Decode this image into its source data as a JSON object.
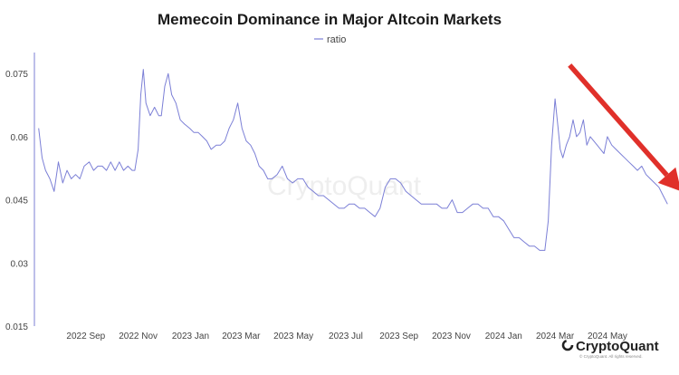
{
  "chart_data": {
    "type": "line",
    "title": "Memecoin Dominance in Major Altcoin Markets",
    "xlabel": "",
    "ylabel": "",
    "legend": {
      "position": "top-center",
      "entries": [
        "ratio"
      ]
    },
    "grid": false,
    "xlim": [
      "2022-07-03",
      "2024-07-15"
    ],
    "ylim": [
      0.015,
      0.08
    ],
    "xticks": [
      {
        "date": "2022-09-01",
        "label": "2022 Sep"
      },
      {
        "date": "2022-11-01",
        "label": "2022 Nov"
      },
      {
        "date": "2023-01-01",
        "label": "2023 Jan"
      },
      {
        "date": "2023-03-01",
        "label": "2023 Mar"
      },
      {
        "date": "2023-05-01",
        "label": "2023 May"
      },
      {
        "date": "2023-07-01",
        "label": "2023 Jul"
      },
      {
        "date": "2023-09-01",
        "label": "2023 Sep"
      },
      {
        "date": "2023-11-01",
        "label": "2023 Nov"
      },
      {
        "date": "2024-01-01",
        "label": "2024 Jan"
      },
      {
        "date": "2024-03-01",
        "label": "2024 Mar"
      },
      {
        "date": "2024-05-01",
        "label": "2024 May"
      }
    ],
    "yticks": [
      {
        "value": 0.015,
        "label": "0.015"
      },
      {
        "value": 0.03,
        "label": "0.03"
      },
      {
        "value": 0.045,
        "label": "0.045"
      },
      {
        "value": 0.06,
        "label": "0.06"
      },
      {
        "value": 0.075,
        "label": "0.075"
      }
    ],
    "series": [
      {
        "name": "ratio",
        "color": "#7b7fd6",
        "x": [
          "2022-07-08",
          "2022-07-12",
          "2022-07-16",
          "2022-07-21",
          "2022-07-26",
          "2022-07-31",
          "2022-08-05",
          "2022-08-10",
          "2022-08-15",
          "2022-08-20",
          "2022-08-25",
          "2022-08-30",
          "2022-09-05",
          "2022-09-10",
          "2022-09-15",
          "2022-09-20",
          "2022-09-25",
          "2022-09-30",
          "2022-10-05",
          "2022-10-10",
          "2022-10-15",
          "2022-10-20",
          "2022-10-25",
          "2022-10-28",
          "2022-11-01",
          "2022-11-04",
          "2022-11-07",
          "2022-11-10",
          "2022-11-15",
          "2022-11-20",
          "2022-11-25",
          "2022-11-28",
          "2022-12-02",
          "2022-12-06",
          "2022-12-10",
          "2022-12-15",
          "2022-12-20",
          "2022-12-25",
          "2022-12-31",
          "2023-01-05",
          "2023-01-10",
          "2023-01-15",
          "2023-01-20",
          "2023-01-25",
          "2023-01-31",
          "2023-02-05",
          "2023-02-10",
          "2023-02-15",
          "2023-02-20",
          "2023-02-25",
          "2023-03-02",
          "2023-03-07",
          "2023-03-12",
          "2023-03-17",
          "2023-03-22",
          "2023-03-27",
          "2023-04-01",
          "2023-04-06",
          "2023-04-12",
          "2023-04-18",
          "2023-04-24",
          "2023-04-30",
          "2023-05-06",
          "2023-05-12",
          "2023-05-18",
          "2023-05-24",
          "2023-05-30",
          "2023-06-05",
          "2023-06-11",
          "2023-06-17",
          "2023-06-23",
          "2023-06-29",
          "2023-07-05",
          "2023-07-11",
          "2023-07-17",
          "2023-07-23",
          "2023-07-29",
          "2023-08-04",
          "2023-08-10",
          "2023-08-16",
          "2023-08-22",
          "2023-08-28",
          "2023-09-03",
          "2023-09-09",
          "2023-09-15",
          "2023-09-21",
          "2023-09-27",
          "2023-10-03",
          "2023-10-09",
          "2023-10-15",
          "2023-10-21",
          "2023-10-27",
          "2023-11-02",
          "2023-11-08",
          "2023-11-14",
          "2023-11-20",
          "2023-11-26",
          "2023-12-02",
          "2023-12-08",
          "2023-12-14",
          "2023-12-20",
          "2023-12-26",
          "2024-01-01",
          "2024-01-07",
          "2024-01-13",
          "2024-01-19",
          "2024-01-25",
          "2024-01-31",
          "2024-02-06",
          "2024-02-12",
          "2024-02-18",
          "2024-02-22",
          "2024-02-26",
          "2024-03-01",
          "2024-03-04",
          "2024-03-07",
          "2024-03-10",
          "2024-03-14",
          "2024-03-18",
          "2024-03-22",
          "2024-03-26",
          "2024-03-30",
          "2024-04-03",
          "2024-04-07",
          "2024-04-11",
          "2024-04-15",
          "2024-04-19",
          "2024-04-23",
          "2024-04-27",
          "2024-05-01",
          "2024-05-06",
          "2024-05-11",
          "2024-05-16",
          "2024-05-21",
          "2024-05-26",
          "2024-05-31",
          "2024-06-05",
          "2024-06-10",
          "2024-06-15",
          "2024-06-20",
          "2024-06-25",
          "2024-06-30",
          "2024-07-05",
          "2024-07-10"
        ],
        "values": [
          0.062,
          0.055,
          0.052,
          0.05,
          0.047,
          0.054,
          0.049,
          0.052,
          0.05,
          0.051,
          0.05,
          0.053,
          0.054,
          0.052,
          0.053,
          0.053,
          0.052,
          0.054,
          0.052,
          0.054,
          0.052,
          0.053,
          0.052,
          0.052,
          0.057,
          0.07,
          0.076,
          0.068,
          0.065,
          0.067,
          0.065,
          0.065,
          0.072,
          0.075,
          0.07,
          0.068,
          0.064,
          0.063,
          0.062,
          0.061,
          0.061,
          0.06,
          0.059,
          0.057,
          0.058,
          0.058,
          0.059,
          0.062,
          0.064,
          0.068,
          0.062,
          0.059,
          0.058,
          0.056,
          0.053,
          0.052,
          0.05,
          0.05,
          0.051,
          0.053,
          0.05,
          0.049,
          0.05,
          0.05,
          0.048,
          0.047,
          0.046,
          0.046,
          0.045,
          0.044,
          0.043,
          0.043,
          0.044,
          0.044,
          0.043,
          0.043,
          0.042,
          0.041,
          0.043,
          0.048,
          0.05,
          0.05,
          0.049,
          0.047,
          0.046,
          0.045,
          0.044,
          0.044,
          0.044,
          0.044,
          0.043,
          0.043,
          0.045,
          0.042,
          0.042,
          0.043,
          0.044,
          0.044,
          0.043,
          0.043,
          0.041,
          0.041,
          0.04,
          0.038,
          0.036,
          0.036,
          0.035,
          0.034,
          0.034,
          0.033,
          0.033,
          0.04,
          0.058,
          0.069,
          0.063,
          0.057,
          0.055,
          0.058,
          0.06,
          0.064,
          0.06,
          0.061,
          0.064,
          0.058,
          0.06,
          0.059,
          0.058,
          0.057,
          0.056,
          0.06,
          0.058,
          0.057,
          0.056,
          0.055,
          0.054,
          0.053,
          0.052,
          0.053,
          0.051,
          0.05,
          0.049,
          0.048,
          0.046,
          0.044
        ]
      }
    ],
    "annotations": [
      {
        "type": "arrow",
        "color": "#e0302a",
        "start": [
          "2024-03-18",
          0.077
        ],
        "end": [
          "2024-07-26",
          0.047
        ]
      }
    ]
  },
  "branding": {
    "watermark": "CryptoQuant",
    "logo_text": "CryptoQuant",
    "copyright": "© CryptoQuant. All rights reserved."
  }
}
